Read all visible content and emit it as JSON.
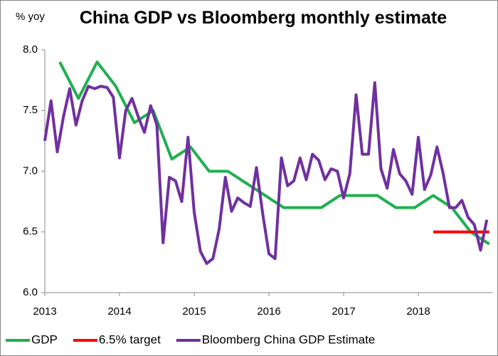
{
  "chart_data": {
    "type": "line",
    "title": "China GDP vs Bloomberg monthly estimate",
    "y_axis_label": "% yoy",
    "xlim": [
      2013,
      2019
    ],
    "xticks": [
      2013,
      2014,
      2015,
      2016,
      2017,
      2018
    ],
    "ylim": [
      6.0,
      8.0
    ],
    "yticks": [
      {
        "value": 6.0,
        "label": "6.0"
      },
      {
        "value": 6.5,
        "label": "6.5"
      },
      {
        "value": 7.0,
        "label": "7.0"
      },
      {
        "value": 7.5,
        "label": "7.5"
      },
      {
        "value": 8.0,
        "label": "8.0"
      }
    ],
    "grid": false,
    "legend": "bottom",
    "series": [
      {
        "name": "GDP",
        "color": "#1fb04e",
        "x": [
          2013.2,
          2013.45,
          2013.7,
          2013.95,
          2014.2,
          2014.45,
          2014.7,
          2014.95,
          2015.2,
          2015.45,
          2015.7,
          2015.95,
          2016.2,
          2016.45,
          2016.7,
          2016.95,
          2017.2,
          2017.45,
          2017.7,
          2017.95,
          2018.2,
          2018.45,
          2018.7,
          2018.95
        ],
        "values": [
          7.9,
          7.6,
          7.9,
          7.7,
          7.4,
          7.5,
          7.1,
          7.2,
          7.0,
          7.0,
          6.9,
          6.8,
          6.7,
          6.7,
          6.7,
          6.8,
          6.8,
          6.8,
          6.7,
          6.7,
          6.8,
          6.7,
          6.5,
          6.4
        ]
      },
      {
        "name": "6.5% target",
        "color": "#ff0000",
        "x": [
          2018.2,
          2018.95
        ],
        "values": [
          6.5,
          6.5
        ]
      },
      {
        "name": "Bloomberg China GDP Estimate",
        "color": "#7030a0",
        "x": [
          2013,
          2013.083,
          2013.167,
          2013.25,
          2013.333,
          2013.417,
          2013.5,
          2013.583,
          2013.667,
          2013.75,
          2013.833,
          2013.917,
          2014,
          2014.083,
          2014.167,
          2014.25,
          2014.333,
          2014.417,
          2014.5,
          2014.583,
          2014.667,
          2014.75,
          2014.833,
          2014.917,
          2015,
          2015.083,
          2015.167,
          2015.25,
          2015.333,
          2015.417,
          2015.5,
          2015.583,
          2015.667,
          2015.75,
          2015.833,
          2015.917,
          2016,
          2016.083,
          2016.167,
          2016.25,
          2016.333,
          2016.417,
          2016.5,
          2016.583,
          2016.667,
          2016.75,
          2016.833,
          2016.917,
          2017,
          2017.083,
          2017.167,
          2017.25,
          2017.333,
          2017.417,
          2017.5,
          2017.583,
          2017.667,
          2017.75,
          2017.833,
          2017.917,
          2018,
          2018.083,
          2018.167,
          2018.25,
          2018.333,
          2018.417,
          2018.5,
          2018.583,
          2018.667,
          2018.75,
          2018.833,
          2018.917
        ],
        "values": [
          7.25,
          7.58,
          7.16,
          7.45,
          7.68,
          7.38,
          7.58,
          7.7,
          7.68,
          7.7,
          7.69,
          7.61,
          7.11,
          7.5,
          7.6,
          7.45,
          7.32,
          7.54,
          7.38,
          6.41,
          6.95,
          6.92,
          6.75,
          7.28,
          6.66,
          6.34,
          6.24,
          6.28,
          6.52,
          6.95,
          6.67,
          6.78,
          6.74,
          6.71,
          7.03,
          6.65,
          6.32,
          6.28,
          7.11,
          6.88,
          6.92,
          7.11,
          6.93,
          7.14,
          7.09,
          6.93,
          7.02,
          7.0,
          6.78,
          6.98,
          7.63,
          7.14,
          7.14,
          7.73,
          7.02,
          6.86,
          7.18,
          6.98,
          6.92,
          6.81,
          7.28,
          6.85,
          6.97,
          7.2,
          6.98,
          6.7,
          6.7,
          6.76,
          6.62,
          6.56,
          6.35,
          6.6
        ]
      }
    ]
  }
}
